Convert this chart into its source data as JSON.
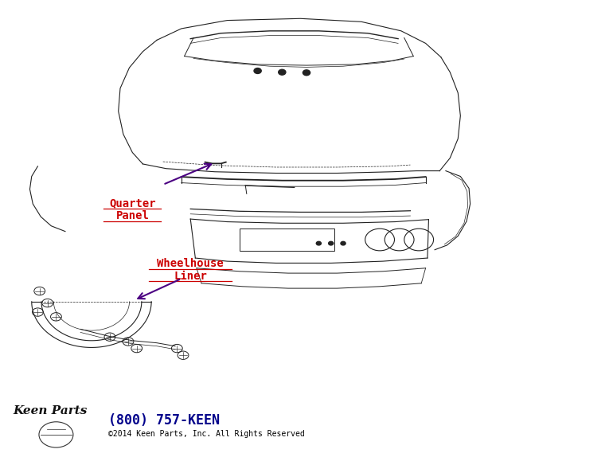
{
  "bg_color": "#ffffff",
  "fig_width": 7.7,
  "fig_height": 5.79,
  "dpi": 100,
  "line_color": "#222222",
  "label_qp_text1": "Quarter",
  "label_qp_text2": "Panel",
  "label_wl_text1": "Wheelhouse",
  "label_wl_text2": "Liner",
  "label_color": "#cc0000",
  "arrow_color": "#4b0082",
  "footer_phone": "(800) 757-KEEN",
  "footer_phone_color": "#00008b",
  "footer_copyright": "©2014 Keen Parts, Inc. All Rights Reserved",
  "footer_copyright_color": "#000000",
  "footer_logo": "Keen Parts"
}
